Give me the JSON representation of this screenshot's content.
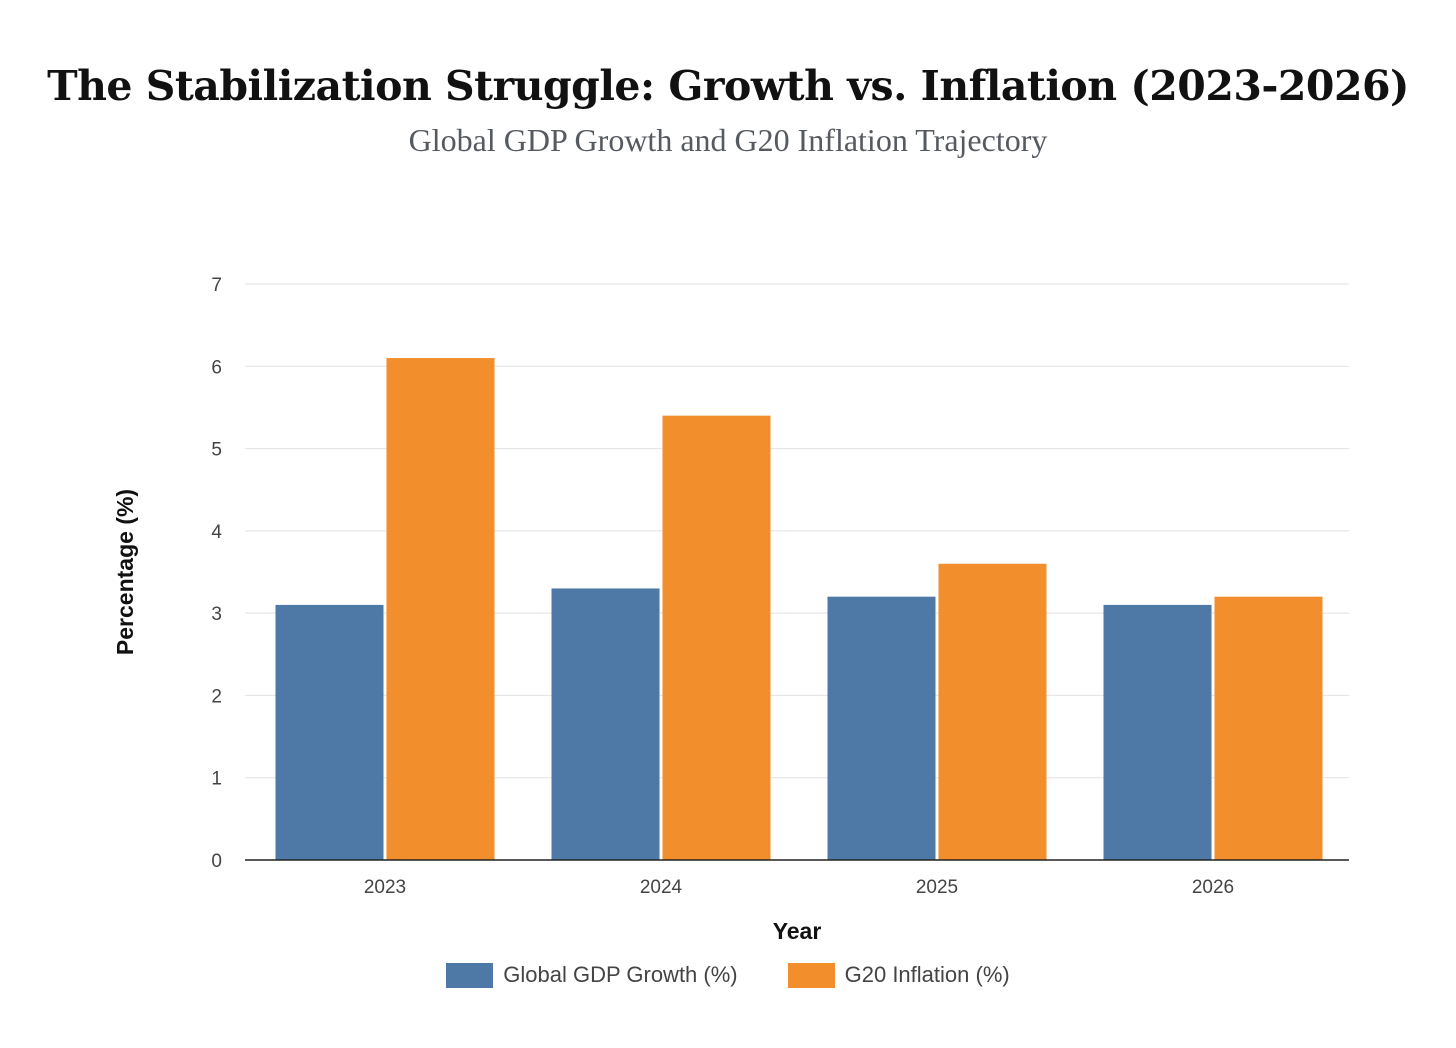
{
  "chart_data": {
    "type": "bar",
    "title": "The Stabilization Struggle: Growth vs. Inflation (2023-2026)",
    "subtitle": "Global GDP Growth and G20 Inflation Trajectory",
    "xlabel": "Year",
    "ylabel": "Percentage (%)",
    "categories": [
      "2023",
      "2024",
      "2025",
      "2026"
    ],
    "ylim": [
      0,
      7
    ],
    "yticks": [
      "0",
      "1",
      "2",
      "3",
      "4",
      "5",
      "6",
      "7"
    ],
    "grid": true,
    "legend_position": "bottom",
    "series": [
      {
        "name": "Global GDP Growth (%)",
        "values": [
          3.1,
          3.3,
          3.2,
          3.1
        ],
        "color": "#4e79a7"
      },
      {
        "name": "G20 Inflation (%)",
        "values": [
          6.1,
          5.4,
          3.6,
          3.2
        ],
        "color": "#f28e2b"
      }
    ]
  }
}
